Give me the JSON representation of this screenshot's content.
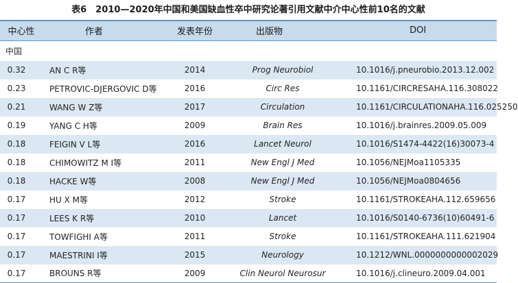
{
  "caption": "表6　2010—2020年中国和美国缺血性卒中研究论著引用文献中介中心性前10名的文献",
  "headers": {
    "centrality": "中心性",
    "author": "作者",
    "year": "发表年份",
    "publication": "出版物",
    "doi": "DOI"
  },
  "group_label": "中国",
  "rows": [
    {
      "centrality": "0.32",
      "author": "AN C R等",
      "year": "2014",
      "publication": "Prog Neurobiol",
      "doi": "10.1016/j.pneurobio.2013.12.002"
    },
    {
      "centrality": "0.23",
      "author": "PETROVIC-DJERGOVIC D等",
      "year": "2016",
      "publication": "Circ Res",
      "doi": "10.1161/CIRCRESAHA.116.308022"
    },
    {
      "centrality": "0.21",
      "author": "WANG W Z等",
      "year": "2017",
      "publication": "Circulation",
      "doi": "10.1161/CIRCULATIONAHA.116.025250"
    },
    {
      "centrality": "0.19",
      "author": "YANG C H等",
      "year": "2009",
      "publication": "Brain Res",
      "doi": "10.1016/j.brainres.2009.05.009"
    },
    {
      "centrality": "0.18",
      "author": "FEIGIN V L等",
      "year": "2016",
      "publication": "Lancet Neurol",
      "doi": "10.1016/S1474-4422(16)30073-4"
    },
    {
      "centrality": "0.18",
      "author": "CHIMOWITZ M I等",
      "year": "2011",
      "publication": "New Engl J Med",
      "doi": "10.1056/NEJMoa1105335"
    },
    {
      "centrality": "0.18",
      "author": "HACKE W等",
      "year": "2008",
      "publication": "New Engl J Med",
      "doi": "10.1056/NEJMoa0804656"
    },
    {
      "centrality": "0.17",
      "author": "HU X M等",
      "year": "2012",
      "publication": "Stroke",
      "doi": "10.1161/STROKEAHA.112.659656"
    },
    {
      "centrality": "0.17",
      "author": "LEES K R等",
      "year": "2010",
      "publication": "Lancet",
      "doi": "10.1016/S0140-6736(10)60491-6"
    },
    {
      "centrality": "0.17",
      "author": "TOWFIGHI A等",
      "year": "2011",
      "publication": "Stroke",
      "doi": "10.1161/STROKEAHA.111.621904"
    },
    {
      "centrality": "0.17",
      "author": "MAESTRINI I等",
      "year": "2015",
      "publication": "Neurology",
      "doi": "10.1212/WNL.0000000000002029"
    },
    {
      "centrality": "0.17",
      "author": "BROUNS R等",
      "year": "2009",
      "publication": "Clin Neurol Neurosur",
      "doi": "10.1016/j.clineuro.2009.04.001"
    }
  ],
  "colors": {
    "header_bg": "#c7dbeb",
    "stripe_bg": "#dbe8f3",
    "rule": "#5d95c0"
  }
}
